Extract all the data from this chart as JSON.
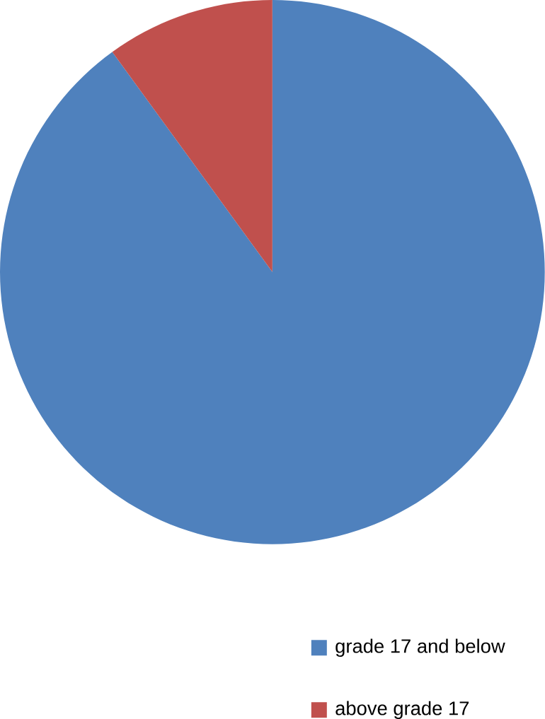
{
  "chart_data": {
    "type": "pie",
    "categories": [
      "grade 17 and below",
      "above grade 17"
    ],
    "values": [
      90,
      10
    ],
    "colors": [
      "#4f81bd",
      "#c0504d"
    ],
    "legend": "bottom"
  }
}
